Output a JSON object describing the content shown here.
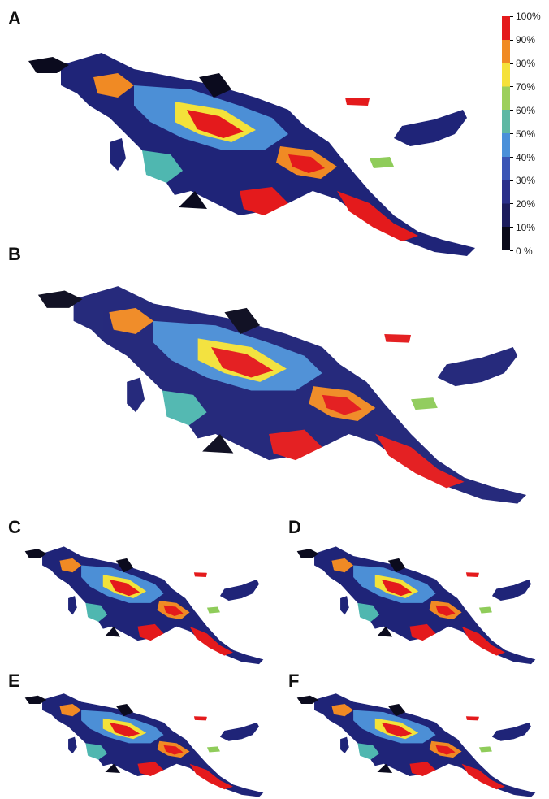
{
  "panels": [
    {
      "id": "A",
      "label": "A"
    },
    {
      "id": "B",
      "label": "B"
    },
    {
      "id": "C",
      "label": "C"
    },
    {
      "id": "D",
      "label": "D"
    },
    {
      "id": "E",
      "label": "E"
    },
    {
      "id": "F",
      "label": "F"
    }
  ],
  "legend": {
    "labels": [
      "100%",
      "90%",
      "80%",
      "70%",
      "60%",
      "50%",
      "40%",
      "30%",
      "20%",
      "10%",
      "0 %"
    ],
    "colors": [
      "#e41a1c",
      "#f08a24",
      "#f5e13a",
      "#9ccf5c",
      "#5fb8a4",
      "#4a90d9",
      "#3a55b5",
      "#2a2f8a",
      "#1c1d5e",
      "#0a0a1a"
    ]
  },
  "palette": {
    "dark": "#0b0b1e",
    "navy": "#1f2478",
    "blue": "#3b47b0",
    "lightblue": "#4c8fd6",
    "teal": "#4fb7b0",
    "green": "#8fcc5a",
    "yellow": "#f3e23a",
    "orange": "#f08a24",
    "red": "#e41a1c"
  }
}
